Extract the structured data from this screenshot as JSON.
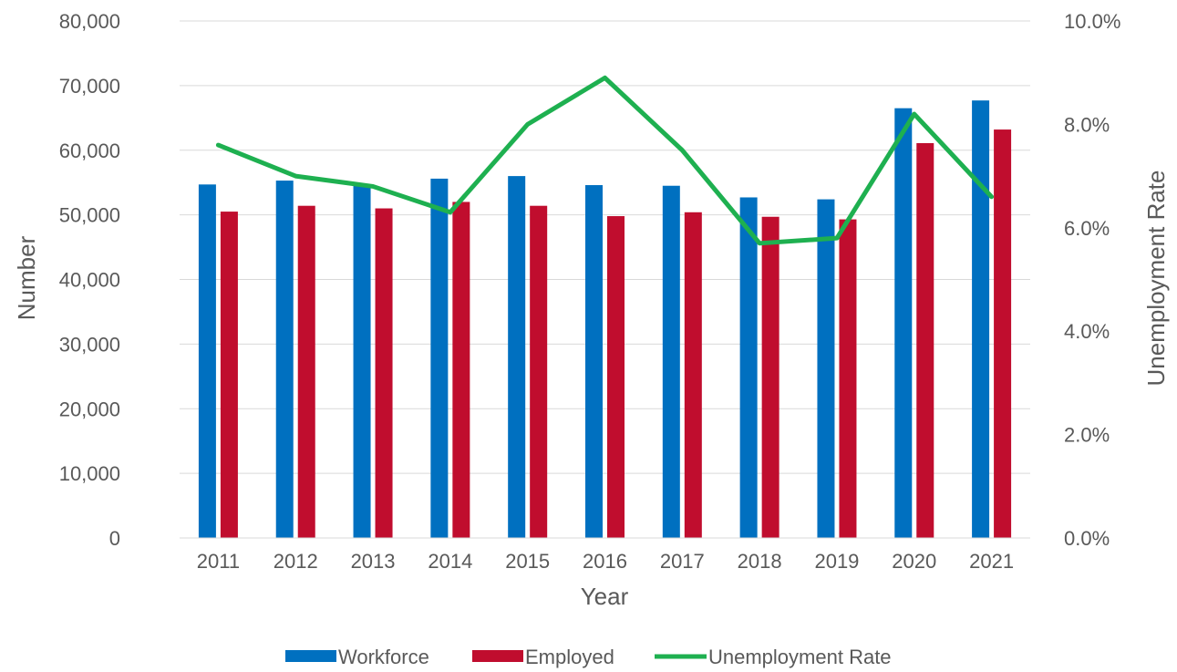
{
  "chart_data": {
    "type": "bar",
    "title": "",
    "categories": [
      "2011",
      "2012",
      "2013",
      "2014",
      "2015",
      "2016",
      "2017",
      "2018",
      "2019",
      "2020",
      "2021"
    ],
    "xlabel": "Year",
    "ylabel": "Number",
    "y2label": "Unemployment Rate",
    "ylim": [
      0,
      80000
    ],
    "y2lim": [
      0,
      10
    ],
    "yticks": [
      "0",
      "10,000",
      "20,000",
      "30,000",
      "40,000",
      "50,000",
      "60,000",
      "70,000",
      "80,000"
    ],
    "y2ticks": [
      "0.0%",
      "2.0%",
      "4.0%",
      "6.0%",
      "8.0%",
      "10.0%"
    ],
    "grid": true,
    "legend_position": "bottom",
    "series": [
      {
        "name": "Workforce",
        "kind": "bar",
        "axis": "left",
        "color": "#0070c0",
        "values": [
          54700,
          55300,
          54700,
          55600,
          56000,
          54600,
          54500,
          52700,
          52400,
          66500,
          67700
        ]
      },
      {
        "name": "Employed",
        "kind": "bar",
        "axis": "left",
        "color": "#c00d2e",
        "values": [
          50500,
          51400,
          51000,
          52000,
          51400,
          49800,
          50400,
          49700,
          49300,
          61100,
          63200
        ]
      },
      {
        "name": "Unemployment Rate",
        "kind": "line",
        "axis": "right",
        "color": "#1eb050",
        "values": [
          7.6,
          7.0,
          6.8,
          6.3,
          8.0,
          8.9,
          7.5,
          5.7,
          5.8,
          8.2,
          6.6
        ]
      }
    ]
  }
}
